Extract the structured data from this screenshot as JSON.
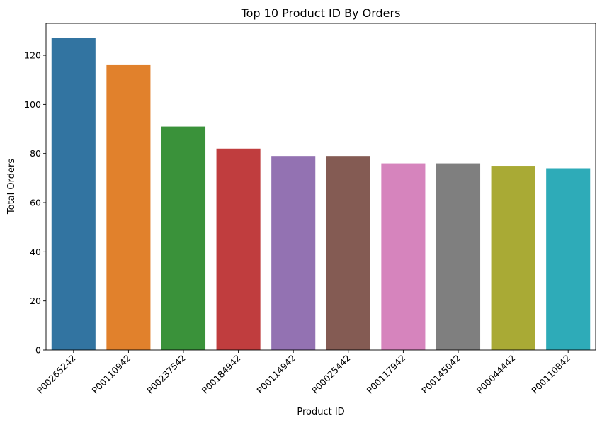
{
  "chart_data": {
    "type": "bar",
    "title": "Top 10 Product ID By Orders",
    "xlabel": "Product ID",
    "ylabel": "Total Orders",
    "categories": [
      "P00265242",
      "P00110942",
      "P00237542",
      "P00184942",
      "P00114942",
      "P00025442",
      "P00117942",
      "P00145042",
      "P00044442",
      "P00110842"
    ],
    "values": [
      127,
      116,
      91,
      82,
      79,
      79,
      76,
      76,
      75,
      74
    ],
    "colors": [
      "#3274a1",
      "#e1812c",
      "#3a923a",
      "#c03d3e",
      "#9372b2",
      "#845b53",
      "#d684bd",
      "#7f7f7f",
      "#a9aa35",
      "#2eabb8"
    ],
    "ylim": [
      0,
      133
    ],
    "yticks": [
      0,
      20,
      40,
      60,
      80,
      100,
      120
    ],
    "grid": false,
    "legend": "none"
  }
}
